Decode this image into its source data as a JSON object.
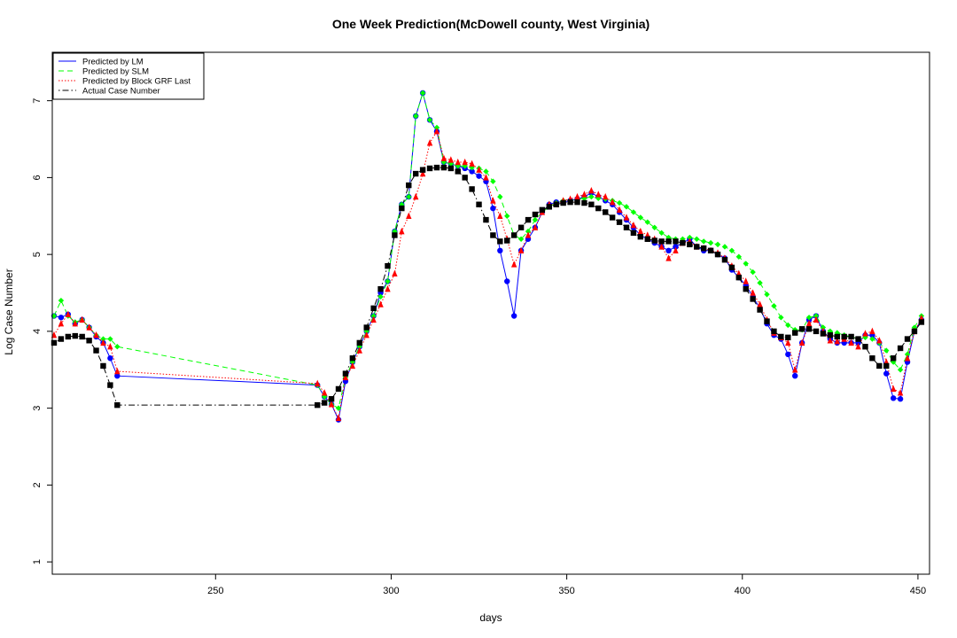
{
  "chart_data": {
    "type": "line",
    "title": "One Week Prediction(McDowell county, West Virginia)",
    "x_label": "days",
    "y_label": "Log Case Number",
    "xlim": [
      203.5,
      453.3
    ],
    "ylim": [
      0.84,
      7.63
    ],
    "xticks": [
      250,
      300,
      350,
      400,
      450
    ],
    "yticks": [
      1,
      2,
      3,
      4,
      5,
      6,
      7
    ],
    "legend": "top-left",
    "x": [
      204,
      206,
      208,
      210,
      212,
      214,
      216,
      218,
      220,
      222,
      279,
      281,
      283,
      285,
      287,
      289,
      291,
      293,
      295,
      297,
      299,
      301,
      303,
      305,
      307,
      309,
      311,
      313,
      315,
      317,
      319,
      321,
      323,
      325,
      327,
      329,
      331,
      333,
      335,
      337,
      339,
      341,
      343,
      345,
      347,
      349,
      351,
      353,
      355,
      357,
      359,
      361,
      363,
      365,
      367,
      369,
      371,
      373,
      375,
      377,
      379,
      381,
      383,
      385,
      387,
      389,
      391,
      393,
      395,
      397,
      399,
      401,
      403,
      405,
      407,
      409,
      411,
      413,
      415,
      417,
      419,
      421,
      423,
      425,
      427,
      429,
      431,
      433,
      435,
      437,
      439,
      441,
      443,
      445,
      447,
      449,
      451
    ],
    "series": [
      {
        "name": "Predicted by LM",
        "color": "#0000ff",
        "dash": "solid",
        "marker": "circle",
        "values": [
          4.2,
          4.18,
          4.22,
          4.1,
          4.15,
          4.05,
          3.93,
          3.85,
          3.65,
          3.42,
          3.3,
          3.15,
          3.05,
          2.85,
          3.35,
          3.6,
          3.8,
          4.0,
          4.2,
          4.5,
          4.65,
          5.3,
          5.65,
          5.75,
          6.8,
          7.1,
          6.75,
          6.6,
          6.2,
          6.18,
          6.15,
          6.12,
          6.08,
          6.02,
          5.95,
          5.6,
          5.05,
          4.65,
          4.2,
          5.05,
          5.2,
          5.35,
          5.55,
          5.65,
          5.68,
          5.68,
          5.7,
          5.72,
          5.75,
          5.8,
          5.75,
          5.7,
          5.65,
          5.55,
          5.45,
          5.35,
          5.25,
          5.2,
          5.15,
          5.1,
          5.05,
          5.1,
          5.15,
          5.2,
          5.1,
          5.05,
          5.05,
          5.0,
          4.95,
          4.8,
          4.7,
          4.6,
          4.45,
          4.3,
          4.1,
          3.95,
          3.9,
          3.7,
          3.42,
          3.85,
          4.15,
          4.2,
          4.0,
          3.9,
          3.85,
          3.85,
          3.85,
          3.85,
          3.95,
          3.95,
          3.85,
          3.45,
          3.13,
          3.12,
          3.6,
          4.0,
          4.15
        ]
      },
      {
        "name": "Predicted by SLM",
        "color": "#00ff00",
        "dash": "dashed",
        "marker": "diamond",
        "values": [
          4.2,
          4.4,
          4.2,
          4.12,
          4.15,
          4.05,
          3.95,
          3.9,
          3.9,
          3.8,
          3.3,
          3.15,
          3.05,
          3.0,
          3.4,
          3.6,
          3.8,
          4.0,
          4.2,
          4.45,
          4.65,
          5.3,
          5.65,
          5.75,
          6.8,
          7.1,
          6.75,
          6.65,
          6.2,
          6.18,
          6.15,
          6.15,
          6.13,
          6.12,
          6.08,
          5.95,
          5.75,
          5.5,
          5.25,
          5.2,
          5.3,
          5.45,
          5.55,
          5.62,
          5.67,
          5.7,
          5.7,
          5.72,
          5.73,
          5.75,
          5.73,
          5.72,
          5.7,
          5.67,
          5.62,
          5.55,
          5.48,
          5.42,
          5.35,
          5.28,
          5.22,
          5.2,
          5.2,
          5.22,
          5.2,
          5.17,
          5.15,
          5.13,
          5.1,
          5.05,
          4.97,
          4.88,
          4.77,
          4.63,
          4.48,
          4.33,
          4.18,
          4.08,
          4.02,
          4.02,
          4.18,
          4.2,
          4.05,
          4.0,
          3.98,
          3.95,
          3.93,
          3.9,
          3.92,
          3.9,
          3.85,
          3.75,
          3.6,
          3.5,
          3.7,
          4.05,
          4.2
        ]
      },
      {
        "name": "Predicted by Block GRF Last",
        "color": "#ff0000",
        "dash": "dotted",
        "marker": "triangle",
        "values": [
          3.95,
          4.1,
          4.22,
          4.1,
          4.15,
          4.05,
          3.95,
          3.85,
          3.8,
          3.48,
          3.32,
          3.2,
          3.05,
          2.87,
          3.4,
          3.55,
          3.75,
          3.95,
          4.15,
          4.35,
          4.55,
          4.75,
          5.3,
          5.5,
          5.75,
          6.05,
          6.45,
          6.6,
          6.25,
          6.23,
          6.2,
          6.2,
          6.18,
          6.1,
          6.0,
          5.7,
          5.5,
          5.2,
          4.87,
          5.05,
          5.25,
          5.35,
          5.55,
          5.65,
          5.65,
          5.7,
          5.72,
          5.75,
          5.78,
          5.83,
          5.78,
          5.75,
          5.68,
          5.58,
          5.48,
          5.38,
          5.3,
          5.25,
          5.2,
          5.1,
          4.95,
          5.05,
          5.15,
          5.17,
          5.1,
          5.08,
          5.05,
          5.02,
          4.95,
          4.85,
          4.75,
          4.65,
          4.5,
          4.35,
          4.15,
          3.98,
          3.92,
          3.85,
          3.5,
          3.85,
          4.1,
          4.15,
          4.0,
          3.88,
          3.87,
          3.9,
          3.85,
          3.8,
          3.97,
          4.0,
          3.88,
          3.6,
          3.25,
          3.2,
          3.65,
          4.0,
          4.17
        ]
      },
      {
        "name": "Actual Case Number",
        "color": "#000000",
        "dash": "dashdot",
        "marker": "square",
        "values": [
          3.85,
          3.9,
          3.93,
          3.94,
          3.93,
          3.88,
          3.75,
          3.55,
          3.3,
          3.04,
          3.04,
          3.07,
          3.12,
          3.25,
          3.45,
          3.65,
          3.85,
          4.05,
          4.3,
          4.55,
          4.85,
          5.25,
          5.6,
          5.9,
          6.05,
          6.1,
          6.12,
          6.13,
          6.13,
          6.12,
          6.08,
          6.0,
          5.85,
          5.65,
          5.45,
          5.25,
          5.17,
          5.18,
          5.25,
          5.35,
          5.45,
          5.52,
          5.58,
          5.62,
          5.65,
          5.67,
          5.68,
          5.68,
          5.67,
          5.65,
          5.6,
          5.55,
          5.48,
          5.42,
          5.35,
          5.28,
          5.23,
          5.2,
          5.18,
          5.17,
          5.17,
          5.17,
          5.15,
          5.13,
          5.1,
          5.08,
          5.05,
          5.0,
          4.93,
          4.83,
          4.7,
          4.55,
          4.42,
          4.28,
          4.13,
          4.0,
          3.93,
          3.92,
          3.98,
          4.03,
          4.03,
          4.0,
          3.97,
          3.95,
          3.93,
          3.93,
          3.93,
          3.9,
          3.8,
          3.65,
          3.55,
          3.55,
          3.65,
          3.78,
          3.9,
          4.0,
          4.12
        ]
      }
    ]
  }
}
